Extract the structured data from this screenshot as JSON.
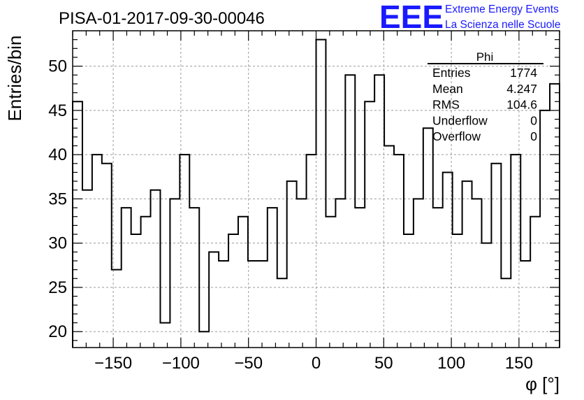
{
  "header": {
    "title": "PISA-01-2017-09-30-00046",
    "logo_text": "EEE",
    "brand_line1": "Extreme Energy Events",
    "brand_line2": "La Scienza nelle Scuole",
    "brand_color": "#1a1aff"
  },
  "stats": {
    "name": "Phi",
    "rows": [
      {
        "label": "Entries",
        "value": "1774"
      },
      {
        "label": "Mean",
        "value": "4.247"
      },
      {
        "label": "RMS",
        "value": "104.6"
      },
      {
        "label": "Underflow",
        "value": "0"
      },
      {
        "label": "Overflow",
        "value": "0"
      }
    ]
  },
  "chart_data": {
    "type": "bar",
    "subtype": "histogram",
    "xlabel": "φ [°]",
    "ylabel": "Entries/bin",
    "xlim": [
      -180,
      180
    ],
    "ylim": [
      18.2,
      54.0
    ],
    "bin_width": 7.2,
    "bin_edges_start": -180,
    "x_ticks": [
      -150,
      -100,
      -50,
      0,
      50,
      100,
      150
    ],
    "x_tick_labels": [
      "−150",
      "−100",
      "−50",
      "0",
      "50",
      "100",
      "150"
    ],
    "y_ticks": [
      20,
      25,
      30,
      35,
      40,
      45,
      50
    ],
    "y_tick_labels": [
      "20",
      "25",
      "30",
      "35",
      "40",
      "45",
      "50"
    ],
    "grid": true,
    "values": [
      46,
      36,
      40,
      39,
      27,
      34,
      31,
      33,
      36,
      21,
      35,
      40,
      34,
      20,
      29,
      28,
      31,
      33,
      28,
      28,
      34,
      26,
      37,
      35,
      40,
      53,
      33,
      35,
      49,
      34,
      46,
      49,
      41,
      40,
      31,
      35,
      43,
      34,
      38,
      31,
      37,
      35,
      30,
      39,
      26,
      40,
      28,
      33,
      45,
      48
    ]
  }
}
